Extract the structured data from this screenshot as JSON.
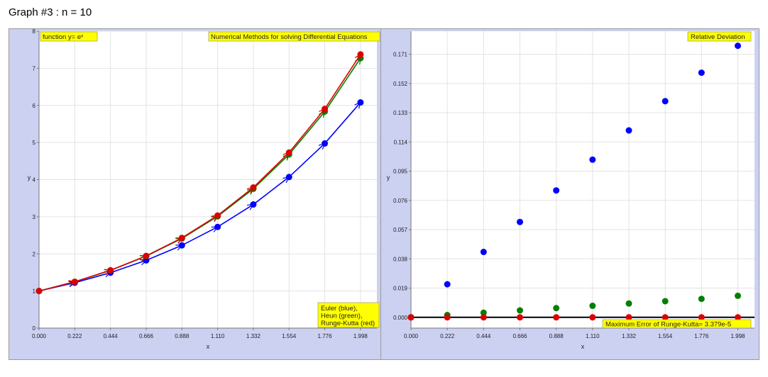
{
  "page": {
    "title": "Graph #3 : n = 10"
  },
  "chart_data": [
    {
      "type": "line",
      "function_label": "function y= eˣ",
      "title": "Numerical Methods for solving Differential Equations",
      "legend_text": [
        "Euler (blue),",
        "Heun (green),",
        "Runge-Kutta (red)"
      ],
      "xlabel": "x",
      "ylabel": "y",
      "xlim": [
        0,
        2.1
      ],
      "ylim": [
        0,
        8
      ],
      "x_ticks": [
        "0.000",
        "0.222",
        "0.444",
        "0.666",
        "0.888",
        "1.110",
        "1.332",
        "1.554",
        "1.776",
        "1.998"
      ],
      "y_ticks": [
        "0",
        "1",
        "2",
        "3",
        "4",
        "5",
        "6",
        "7",
        "8"
      ],
      "grid": true,
      "x": [
        0,
        0.222,
        0.444,
        0.666,
        0.888,
        1.11,
        1.332,
        1.554,
        1.776,
        1.998
      ],
      "series": [
        {
          "color": "#0000ff",
          "values": [
            1.0,
            1.222,
            1.493,
            1.825,
            2.23,
            2.726,
            3.331,
            4.071,
            4.975,
            6.08
          ]
        },
        {
          "color": "#008000",
          "values": [
            1.0,
            1.247,
            1.554,
            1.937,
            2.415,
            3.011,
            3.753,
            4.679,
            5.833,
            7.272
          ]
        },
        {
          "color": "#dd0000",
          "values": [
            1.0,
            1.249,
            1.559,
            1.946,
            2.43,
            3.034,
            3.789,
            4.73,
            5.906,
            7.374
          ]
        }
      ]
    },
    {
      "type": "scatter",
      "title": "Relative Deviation",
      "annotation": "Maximum Error of Runge-Kutta= 3.379e-5",
      "xlabel": "x",
      "ylabel": "y",
      "xlim": [
        0,
        2.1
      ],
      "ylim": [
        -0.007,
        0.186
      ],
      "x_ticks": [
        "0.000",
        "0.222",
        "0.444",
        "0.666",
        "0.888",
        "1.110",
        "1.332",
        "1.554",
        "1.776",
        "1.998"
      ],
      "y_ticks": [
        "0.000",
        "0.019",
        "0.038",
        "0.057",
        "0.076",
        "0.095",
        "0.114",
        "0.133",
        "0.152",
        "0.171"
      ],
      "grid": true,
      "zero_line": true,
      "x": [
        0,
        0.222,
        0.444,
        0.666,
        0.888,
        1.11,
        1.332,
        1.554,
        1.776,
        1.998
      ],
      "series": [
        {
          "color": "#0000ff",
          "values": [
            0.0,
            0.0215,
            0.0425,
            0.062,
            0.0825,
            0.1025,
            0.1215,
            0.1405,
            0.159,
            0.1765
          ]
        },
        {
          "color": "#008000",
          "values": [
            0.0,
            0.0015,
            0.003,
            0.0045,
            0.006,
            0.0075,
            0.009,
            0.0105,
            0.012,
            0.014
          ]
        },
        {
          "color": "#dd0000",
          "values": [
            0.0,
            0.0,
            0.0,
            0.0,
            0.0,
            0.0,
            0.0,
            0.0,
            0.0,
            0.0
          ]
        }
      ]
    }
  ]
}
